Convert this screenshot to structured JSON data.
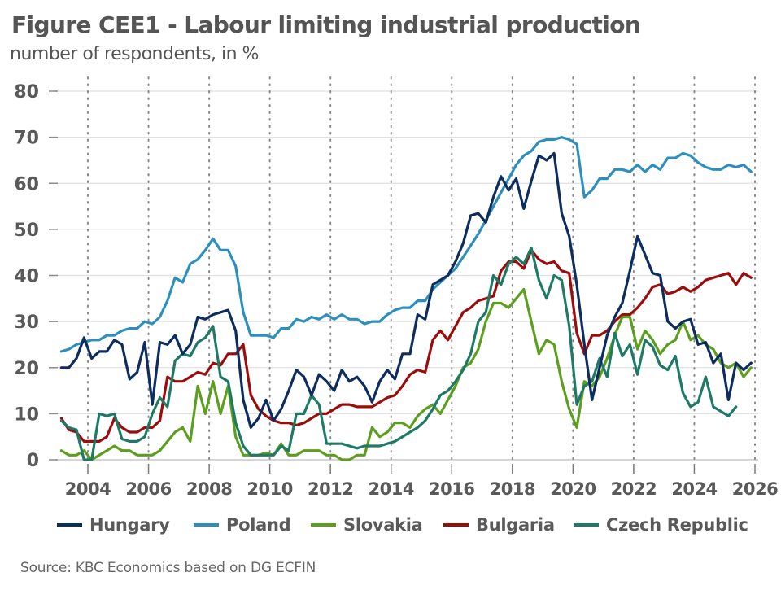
{
  "chart_data": {
    "type": "line",
    "title": "Figure CEE1 - Labour limiting industrial production",
    "subtitle": "number of respondents, in %",
    "source": "Source: KBC Economics based on DG ECFIN",
    "xlabel": "",
    "ylabel": "",
    "ylim": [
      0,
      80
    ],
    "yticks": [
      0,
      10,
      20,
      30,
      40,
      50,
      60,
      70,
      80
    ],
    "xlim": [
      2003,
      2026
    ],
    "xticks": [
      2004,
      2006,
      2008,
      2010,
      2012,
      2014,
      2016,
      2018,
      2020,
      2022,
      2024,
      2026
    ],
    "x_start": 2003.125,
    "x_step": 0.25,
    "frequency": "quarterly",
    "grid": {
      "horizontal": true,
      "vertical_dotted": true
    },
    "legend_position": "bottom",
    "series": [
      {
        "name": "Hungary",
        "color": "#0d2d5e",
        "values": [
          20,
          20,
          22,
          26.5,
          22,
          23.5,
          23.5,
          26,
          25,
          17.5,
          19,
          25.5,
          12,
          25.5,
          25,
          27,
          23,
          25,
          31,
          30.5,
          31.5,
          32,
          32.5,
          28,
          13,
          7,
          9,
          13,
          8.5,
          11,
          15,
          19.5,
          18,
          14,
          18.5,
          17,
          15,
          19.5,
          17,
          18,
          16,
          12.5,
          17,
          19.5,
          17.5,
          23,
          23,
          31.5,
          30.5,
          38,
          39,
          40,
          43,
          47,
          53,
          53.5,
          51.5,
          57,
          61.5,
          58.5,
          61,
          54.5,
          60.5,
          66,
          65,
          66.5,
          53.5,
          48.5,
          38,
          25,
          13,
          20,
          27,
          31,
          34,
          41,
          48.5,
          44.5,
          40.5,
          40,
          30,
          28.5,
          30,
          30.5,
          25,
          25.5,
          21,
          23,
          13,
          21,
          19.5,
          21
        ]
      },
      {
        "name": "Poland",
        "color": "#2e8fbc",
        "values": [
          23.5,
          24,
          25,
          25.5,
          26,
          26,
          27,
          27,
          28,
          28.5,
          28.5,
          30,
          29.5,
          31,
          34.5,
          39.5,
          38.5,
          42.5,
          43.5,
          45.5,
          48,
          45.5,
          45.5,
          42,
          32,
          27,
          27,
          27,
          26.5,
          28.5,
          28.5,
          30.5,
          30,
          31,
          30.5,
          31.5,
          30.5,
          31.5,
          30.5,
          30.5,
          29.5,
          30,
          30,
          31.5,
          32.5,
          33,
          33,
          34.5,
          34.5,
          37,
          38.5,
          40,
          41.5,
          44,
          46.5,
          49,
          52,
          55,
          58,
          61,
          64,
          66,
          67,
          69,
          69.5,
          69.5,
          70,
          69.5,
          68.5,
          57,
          58.5,
          61,
          61,
          63,
          63,
          62.5,
          64,
          62.5,
          64,
          63,
          65.5,
          65.5,
          66.5,
          66,
          64.5,
          63.5,
          63,
          63,
          64,
          63.5,
          64,
          62.5
        ]
      },
      {
        "name": "Slovakia",
        "color": "#5e9e1e",
        "values": [
          2,
          1,
          1,
          2,
          0,
          1,
          2,
          3,
          2,
          2,
          1,
          1,
          1,
          2,
          4,
          6,
          7,
          4,
          16,
          10,
          17,
          10,
          16,
          5,
          1,
          1,
          1,
          1.5,
          1,
          3.5,
          1,
          1,
          2,
          2,
          2,
          1,
          1,
          0,
          0,
          1,
          1,
          7,
          5,
          6,
          8,
          8,
          7,
          9.5,
          11,
          12,
          10,
          13,
          16,
          20,
          21,
          24,
          30,
          34,
          34,
          33,
          35,
          37,
          30,
          23,
          26,
          25,
          17,
          11,
          7,
          17,
          16,
          18,
          22,
          27,
          31,
          31,
          24,
          28,
          26,
          23,
          25,
          26,
          30,
          26,
          27,
          25,
          24,
          21,
          20,
          21,
          18,
          20
        ]
      },
      {
        "name": "Bulgaria",
        "color": "#9b0d0d",
        "values": [
          9,
          6.5,
          6,
          4,
          4,
          4,
          5,
          9,
          7,
          6,
          6,
          7,
          7,
          8.5,
          18,
          17,
          17,
          18,
          19,
          18.5,
          21,
          20.5,
          23,
          23,
          25,
          14,
          11,
          9.5,
          8.5,
          8,
          8,
          7.5,
          8,
          9,
          10,
          10,
          11,
          12,
          12,
          11.5,
          11.5,
          11.5,
          12.5,
          13.5,
          14,
          16,
          18.5,
          19.5,
          19,
          26,
          28,
          26,
          29,
          32,
          33,
          34.5,
          35,
          35.5,
          41,
          43,
          43,
          41.5,
          45.5,
          43.5,
          42.5,
          43,
          41,
          40.5,
          27.5,
          23,
          27,
          27,
          28,
          30,
          31.5,
          31.5,
          33,
          35,
          37.5,
          38,
          36,
          36.5,
          37.5,
          36.5,
          37.5,
          39,
          39.5,
          40,
          40.5,
          38,
          40.5,
          39.5
        ]
      },
      {
        "name": "Czech Republic",
        "color": "#1e7a65",
        "values": [
          8.5,
          7,
          6.5,
          0,
          0,
          10,
          9.5,
          10,
          4.5,
          4,
          4,
          5,
          10,
          13.5,
          11.5,
          21.5,
          23,
          22.5,
          25.5,
          26.5,
          29,
          18,
          17,
          8,
          3,
          1,
          1,
          1,
          1,
          3,
          2,
          10,
          10,
          14,
          12,
          3.5,
          3.5,
          3.5,
          3,
          2.5,
          3,
          3,
          3,
          3.5,
          4,
          5,
          6,
          7,
          8.5,
          11,
          14,
          15,
          17,
          19.5,
          23,
          30,
          32,
          40,
          38,
          42.5,
          44,
          42.5,
          46,
          39,
          35,
          40,
          39,
          29,
          12,
          16,
          17,
          22,
          18,
          27.5,
          22.5,
          25,
          18.5,
          26,
          24.5,
          20.5,
          19.5,
          22.5,
          14.5,
          11.5,
          12.5,
          18,
          11.5,
          10.5,
          9.5,
          11.5
        ]
      }
    ]
  }
}
